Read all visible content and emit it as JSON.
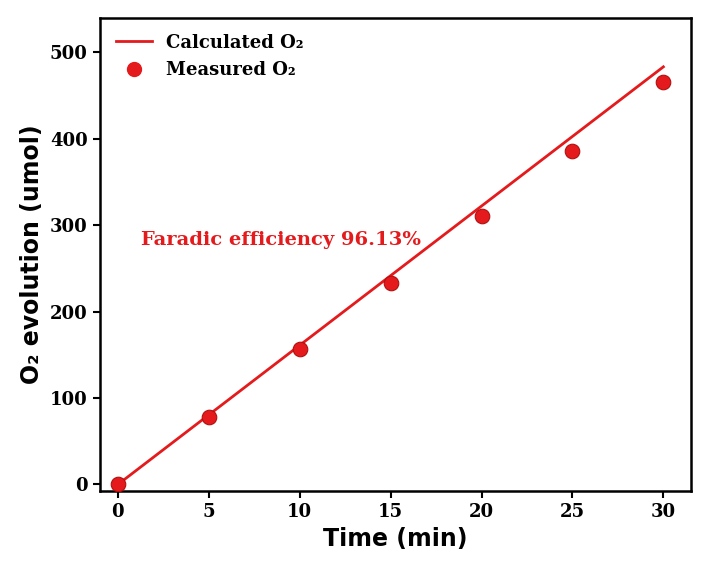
{
  "chart_data": {
    "type": "line",
    "x_label": "Time (min)",
    "y_label": "O₂ evolution (umol)",
    "annotations": [
      "Faradic efficiency 96.13%"
    ],
    "series": [
      {
        "name": "Calculated O₂",
        "type": "line",
        "color": "#e41a1c",
        "line_style": "solid",
        "x": [
          0,
          30
        ],
        "values": [
          0,
          483
        ]
      },
      {
        "name": "Measured O₂",
        "type": "scatter",
        "color": "#e41a1c",
        "marker": "o",
        "x": [
          0,
          5,
          10,
          15,
          20,
          25,
          30
        ],
        "values": [
          0,
          78,
          157,
          233,
          310,
          386,
          466
        ]
      }
    ],
    "xlim": [
      -1,
      31.5
    ],
    "xticks": [
      0,
      5,
      10,
      15,
      20,
      25,
      30
    ],
    "ylim": [
      -8,
      540
    ],
    "yticks": [
      0,
      100,
      200,
      300,
      400,
      500
    ],
    "legend": "upper left",
    "grid": false
  }
}
